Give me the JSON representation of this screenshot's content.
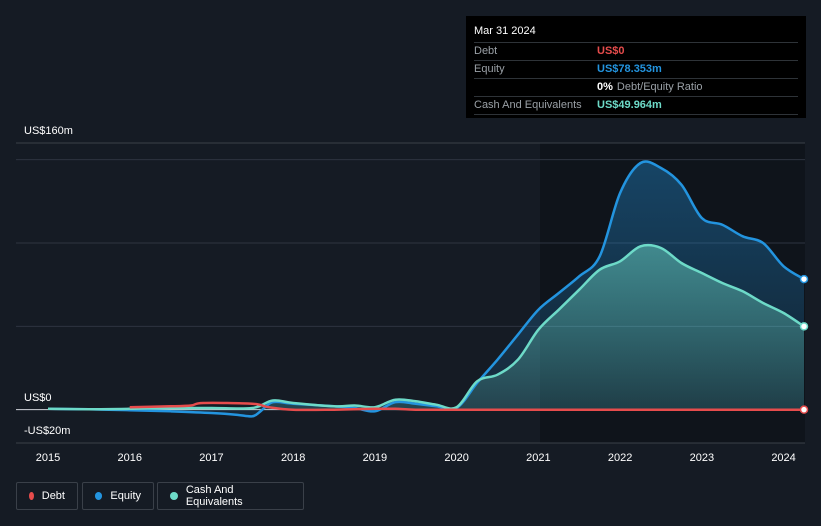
{
  "tooltip": {
    "date": "Mar 31 2024",
    "debt_label": "Debt",
    "debt_value": "US$0",
    "equity_label": "Equity",
    "equity_value": "US$78.353m",
    "ratio_value": "0%",
    "ratio_label": "Debt/Equity Ratio",
    "cash_label": "Cash And Equivalents",
    "cash_value": "US$49.964m"
  },
  "colors": {
    "background": "#151b24",
    "debt": "#e64c4c",
    "equity": "#2394df",
    "cash": "#6ddac8",
    "grid": "#2e3440"
  },
  "legend": [
    {
      "label": "Debt",
      "color": "#e64c4c"
    },
    {
      "label": "Equity",
      "color": "#2394df"
    },
    {
      "label": "Cash And Equivalents",
      "color": "#6ddac8"
    }
  ],
  "chart_data": {
    "type": "area",
    "title": "",
    "xlabel": "",
    "ylabel": "",
    "ylim": [
      -20,
      160
    ],
    "y_tick_labels": [
      {
        "value": 160,
        "label": "US$160m"
      },
      {
        "value": 0,
        "label": "US$0"
      },
      {
        "value": -20,
        "label": "-US$20m"
      }
    ],
    "gridlines": [
      150,
      100,
      50,
      0
    ],
    "xlim": [
      2014.85,
      2024.25
    ],
    "x_tick_labels": [
      "2015",
      "2016",
      "2017",
      "2018",
      "2019",
      "2020",
      "2021",
      "2022",
      "2023",
      "2024"
    ],
    "series": [
      {
        "name": "Equity",
        "points": [
          [
            2015.0,
            0.5
          ],
          [
            2015.5,
            0.2
          ],
          [
            2016.0,
            -0.3
          ],
          [
            2016.5,
            -1.0
          ],
          [
            2017.0,
            -2.0
          ],
          [
            2017.3,
            -3.0
          ],
          [
            2017.5,
            -4.0
          ],
          [
            2017.6,
            -1.0
          ],
          [
            2017.75,
            4.5
          ],
          [
            2018.0,
            3.5
          ],
          [
            2018.5,
            2.0
          ],
          [
            2018.75,
            1.0
          ],
          [
            2019.0,
            -1.0
          ],
          [
            2019.25,
            4.5
          ],
          [
            2019.5,
            3.5
          ],
          [
            2019.75,
            2.0
          ],
          [
            2020.0,
            1.0
          ],
          [
            2020.25,
            16.0
          ],
          [
            2020.5,
            30.0
          ],
          [
            2020.75,
            45.0
          ],
          [
            2021.0,
            60.0
          ],
          [
            2021.25,
            70.0
          ],
          [
            2021.5,
            80.0
          ],
          [
            2021.75,
            92.0
          ],
          [
            2022.0,
            130.0
          ],
          [
            2022.25,
            148.0
          ],
          [
            2022.5,
            145.0
          ],
          [
            2022.75,
            135.0
          ],
          [
            2023.0,
            115.0
          ],
          [
            2023.25,
            111.0
          ],
          [
            2023.5,
            104.0
          ],
          [
            2023.75,
            100.0
          ],
          [
            2024.0,
            86.0
          ],
          [
            2024.25,
            78.353
          ]
        ]
      },
      {
        "name": "Cash And Equivalents",
        "points": [
          [
            2015.0,
            0.5
          ],
          [
            2015.5,
            0.3
          ],
          [
            2016.0,
            0.5
          ],
          [
            2016.5,
            1.0
          ],
          [
            2017.0,
            1.0
          ],
          [
            2017.5,
            1.0
          ],
          [
            2017.75,
            5.5
          ],
          [
            2018.0,
            4.0
          ],
          [
            2018.5,
            2.0
          ],
          [
            2018.75,
            2.5
          ],
          [
            2019.0,
            1.5
          ],
          [
            2019.25,
            6.0
          ],
          [
            2019.5,
            5.0
          ],
          [
            2019.75,
            3.0
          ],
          [
            2020.0,
            1.5
          ],
          [
            2020.25,
            17.0
          ],
          [
            2020.5,
            21.0
          ],
          [
            2020.75,
            30.0
          ],
          [
            2021.0,
            48.0
          ],
          [
            2021.25,
            60.0
          ],
          [
            2021.5,
            72.0
          ],
          [
            2021.75,
            84.0
          ],
          [
            2022.0,
            89.0
          ],
          [
            2022.25,
            98.0
          ],
          [
            2022.5,
            97.0
          ],
          [
            2022.75,
            88.0
          ],
          [
            2023.0,
            82.0
          ],
          [
            2023.25,
            76.0
          ],
          [
            2023.5,
            71.0
          ],
          [
            2023.75,
            64.0
          ],
          [
            2024.0,
            58.0
          ],
          [
            2024.25,
            49.964
          ]
        ]
      },
      {
        "name": "Debt",
        "points": [
          [
            2016.0,
            1.5
          ],
          [
            2016.5,
            2.0
          ],
          [
            2016.75,
            2.5
          ],
          [
            2016.9,
            4.0
          ],
          [
            2017.5,
            3.5
          ],
          [
            2017.7,
            1.5
          ],
          [
            2018.0,
            0.0
          ],
          [
            2018.5,
            0.0
          ],
          [
            2019.0,
            0.5
          ],
          [
            2019.25,
            0.5
          ],
          [
            2019.5,
            0.0
          ],
          [
            2020.0,
            0.0
          ],
          [
            2021.0,
            0.0
          ],
          [
            2022.0,
            0.0
          ],
          [
            2023.0,
            0.0
          ],
          [
            2024.25,
            0.0
          ]
        ]
      }
    ]
  }
}
